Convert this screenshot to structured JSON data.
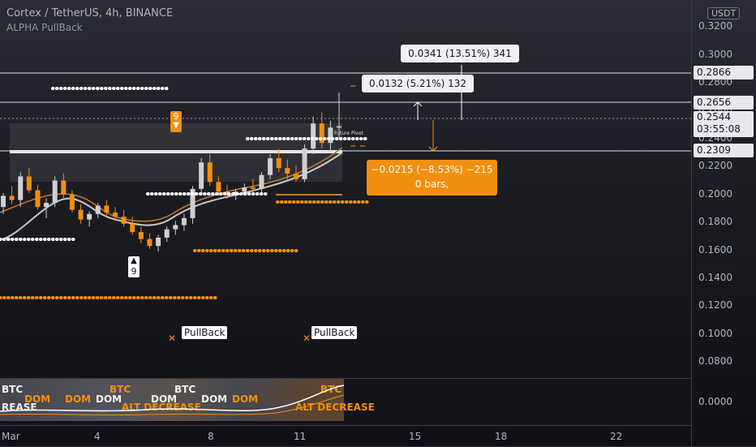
{
  "header": {
    "symbol_line": "Cortex / TetherUS, 4h, BINANCE",
    "indicator": "ALPHA PullBack",
    "currency_badge": "USDT"
  },
  "price_axis": {
    "ticks": [
      "0.3200",
      "0.3000",
      "0.2800",
      "0.2600",
      "0.2400",
      "0.2200",
      "0.2000",
      "0.1800",
      "0.1600",
      "0.1400",
      "0.1200",
      "0.1000",
      "0.0800"
    ],
    "labels": {
      "p2866": "0.2866",
      "p2656": "0.2656",
      "p2544": "0.2544",
      "countdown": "03:55:08",
      "p2309": "0.2309"
    },
    "sub_tick": "0.0000"
  },
  "time_axis": [
    "Mar",
    "4",
    "8",
    "11",
    "15",
    "18",
    "22"
  ],
  "measure": {
    "top": "0.0341 (13.51%) 341",
    "mid": "0.0132 (5.21%) 132",
    "down_line1": "−0.0215 (−8.53%) −215",
    "down_line2": "0 bars,"
  },
  "markers": {
    "nine_top": "9",
    "nine_bottom": "9",
    "pullback1": "PullBack",
    "pullback2": "PullBack",
    "future_pivot": "Future Pivot"
  },
  "sub_pane_labels": [
    "BTC",
    "DOM",
    "DOM",
    "DOM",
    "BTC",
    "DOM",
    "DOM",
    "BTC",
    "BTC",
    "DOM",
    "ALT DECREASE",
    "ALT DECREASE",
    "REASE"
  ],
  "colors": {
    "orange": "#f28f0f",
    "white": "#f0f0f3",
    "bull": "#d0d0d0",
    "bear": "#f28f0f"
  },
  "chart_data": {
    "type": "candlestick",
    "title": "Cortex / TetherUS, 4h, BINANCE",
    "ylim": [
      0.07,
      0.33
    ],
    "x_ticks": [
      "Mar",
      "4",
      "8",
      "11",
      "15",
      "18",
      "22"
    ],
    "candles": [
      [
        0.19,
        0.2,
        0.185,
        0.198
      ],
      [
        0.198,
        0.205,
        0.192,
        0.195
      ],
      [
        0.195,
        0.215,
        0.19,
        0.212
      ],
      [
        0.212,
        0.218,
        0.2,
        0.202
      ],
      [
        0.202,
        0.206,
        0.188,
        0.19
      ],
      [
        0.19,
        0.196,
        0.182,
        0.193
      ],
      [
        0.193,
        0.212,
        0.19,
        0.209
      ],
      [
        0.209,
        0.214,
        0.196,
        0.199
      ],
      [
        0.199,
        0.202,
        0.186,
        0.188
      ],
      [
        0.188,
        0.192,
        0.178,
        0.181
      ],
      [
        0.181,
        0.187,
        0.176,
        0.185
      ],
      [
        0.185,
        0.193,
        0.182,
        0.191
      ],
      [
        0.191,
        0.195,
        0.184,
        0.186
      ],
      [
        0.186,
        0.19,
        0.18,
        0.183
      ],
      [
        0.183,
        0.188,
        0.176,
        0.178
      ],
      [
        0.178,
        0.183,
        0.17,
        0.172
      ],
      [
        0.172,
        0.176,
        0.164,
        0.167
      ],
      [
        0.167,
        0.171,
        0.16,
        0.162
      ],
      [
        0.162,
        0.17,
        0.158,
        0.168
      ],
      [
        0.168,
        0.176,
        0.165,
        0.174
      ],
      [
        0.174,
        0.18,
        0.17,
        0.177
      ],
      [
        0.177,
        0.185,
        0.173,
        0.182
      ],
      [
        0.182,
        0.205,
        0.178,
        0.203
      ],
      [
        0.203,
        0.225,
        0.2,
        0.222
      ],
      [
        0.222,
        0.228,
        0.205,
        0.208
      ],
      [
        0.208,
        0.212,
        0.198,
        0.201
      ],
      [
        0.201,
        0.206,
        0.196,
        0.199
      ],
      [
        0.199,
        0.203,
        0.195,
        0.201
      ],
      [
        0.201,
        0.207,
        0.198,
        0.204
      ],
      [
        0.204,
        0.21,
        0.2,
        0.203
      ],
      [
        0.203,
        0.215,
        0.2,
        0.213
      ],
      [
        0.213,
        0.228,
        0.21,
        0.225
      ],
      [
        0.225,
        0.232,
        0.215,
        0.218
      ],
      [
        0.218,
        0.224,
        0.21,
        0.214
      ],
      [
        0.214,
        0.22,
        0.208,
        0.21
      ],
      [
        0.21,
        0.235,
        0.208,
        0.232
      ],
      [
        0.232,
        0.255,
        0.228,
        0.25
      ],
      [
        0.25,
        0.258,
        0.232,
        0.236
      ],
      [
        0.236,
        0.252,
        0.23,
        0.247
      ],
      [
        0.247,
        0.272,
        0.24,
        0.248
      ]
    ],
    "levels": [
      0.2866,
      0.2656,
      0.2544,
      0.2309
    ]
  }
}
